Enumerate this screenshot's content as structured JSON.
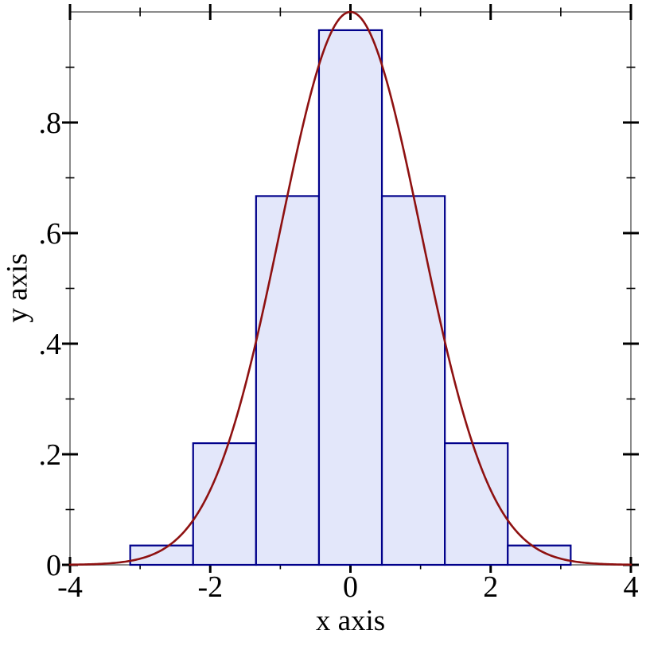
{
  "figure": {
    "x_axis_title": "x axis",
    "y_axis_title": "y axis",
    "background": "#ffffff"
  },
  "chart_data": {
    "type": "bar",
    "subtype": "histogram-with-density-curve",
    "title": "",
    "xlabel": "x axis",
    "ylabel": "y axis",
    "xlim": [
      -4,
      4
    ],
    "ylim": [
      0,
      1
    ],
    "grid": false,
    "legend": "none",
    "histogram": {
      "bin_edges": [
        -3.1416,
        -2.244,
        -1.3464,
        -0.4488,
        0.4488,
        1.3464,
        2.244,
        3.1416
      ],
      "heights": [
        0.035,
        0.22,
        0.667,
        0.967,
        0.667,
        0.22,
        0.035
      ],
      "fill_color": "#e3e7fa",
      "edge_color": "#00008b"
    },
    "curve": {
      "name": "gaussian-density",
      "formula": "y = exp(-x^2 / 2)",
      "mu": 0,
      "sigma": 1,
      "amplitude": 1,
      "color": "#8e1111"
    },
    "axes": {
      "frame_color": "#8a8a8a",
      "tick_color": "#000000",
      "label_color": "#000000",
      "x_major_ticks": [
        {
          "v": -4,
          "label": "-4"
        },
        {
          "v": -2,
          "label": "-2"
        },
        {
          "v": 0,
          "label": "0"
        },
        {
          "v": 2,
          "label": "2"
        },
        {
          "v": 4,
          "label": "4"
        }
      ],
      "x_minor_ticks": [
        -3,
        -1,
        1,
        3
      ],
      "y_major_ticks": [
        {
          "v": 0,
          "label": "0"
        },
        {
          "v": 0.2,
          "label": ".2"
        },
        {
          "v": 0.4,
          "label": ".4"
        },
        {
          "v": 0.6,
          "label": ".6"
        },
        {
          "v": 0.8,
          "label": ".8"
        }
      ],
      "y_minor_ticks": [
        0.1,
        0.3,
        0.5,
        0.7,
        0.9
      ]
    }
  }
}
